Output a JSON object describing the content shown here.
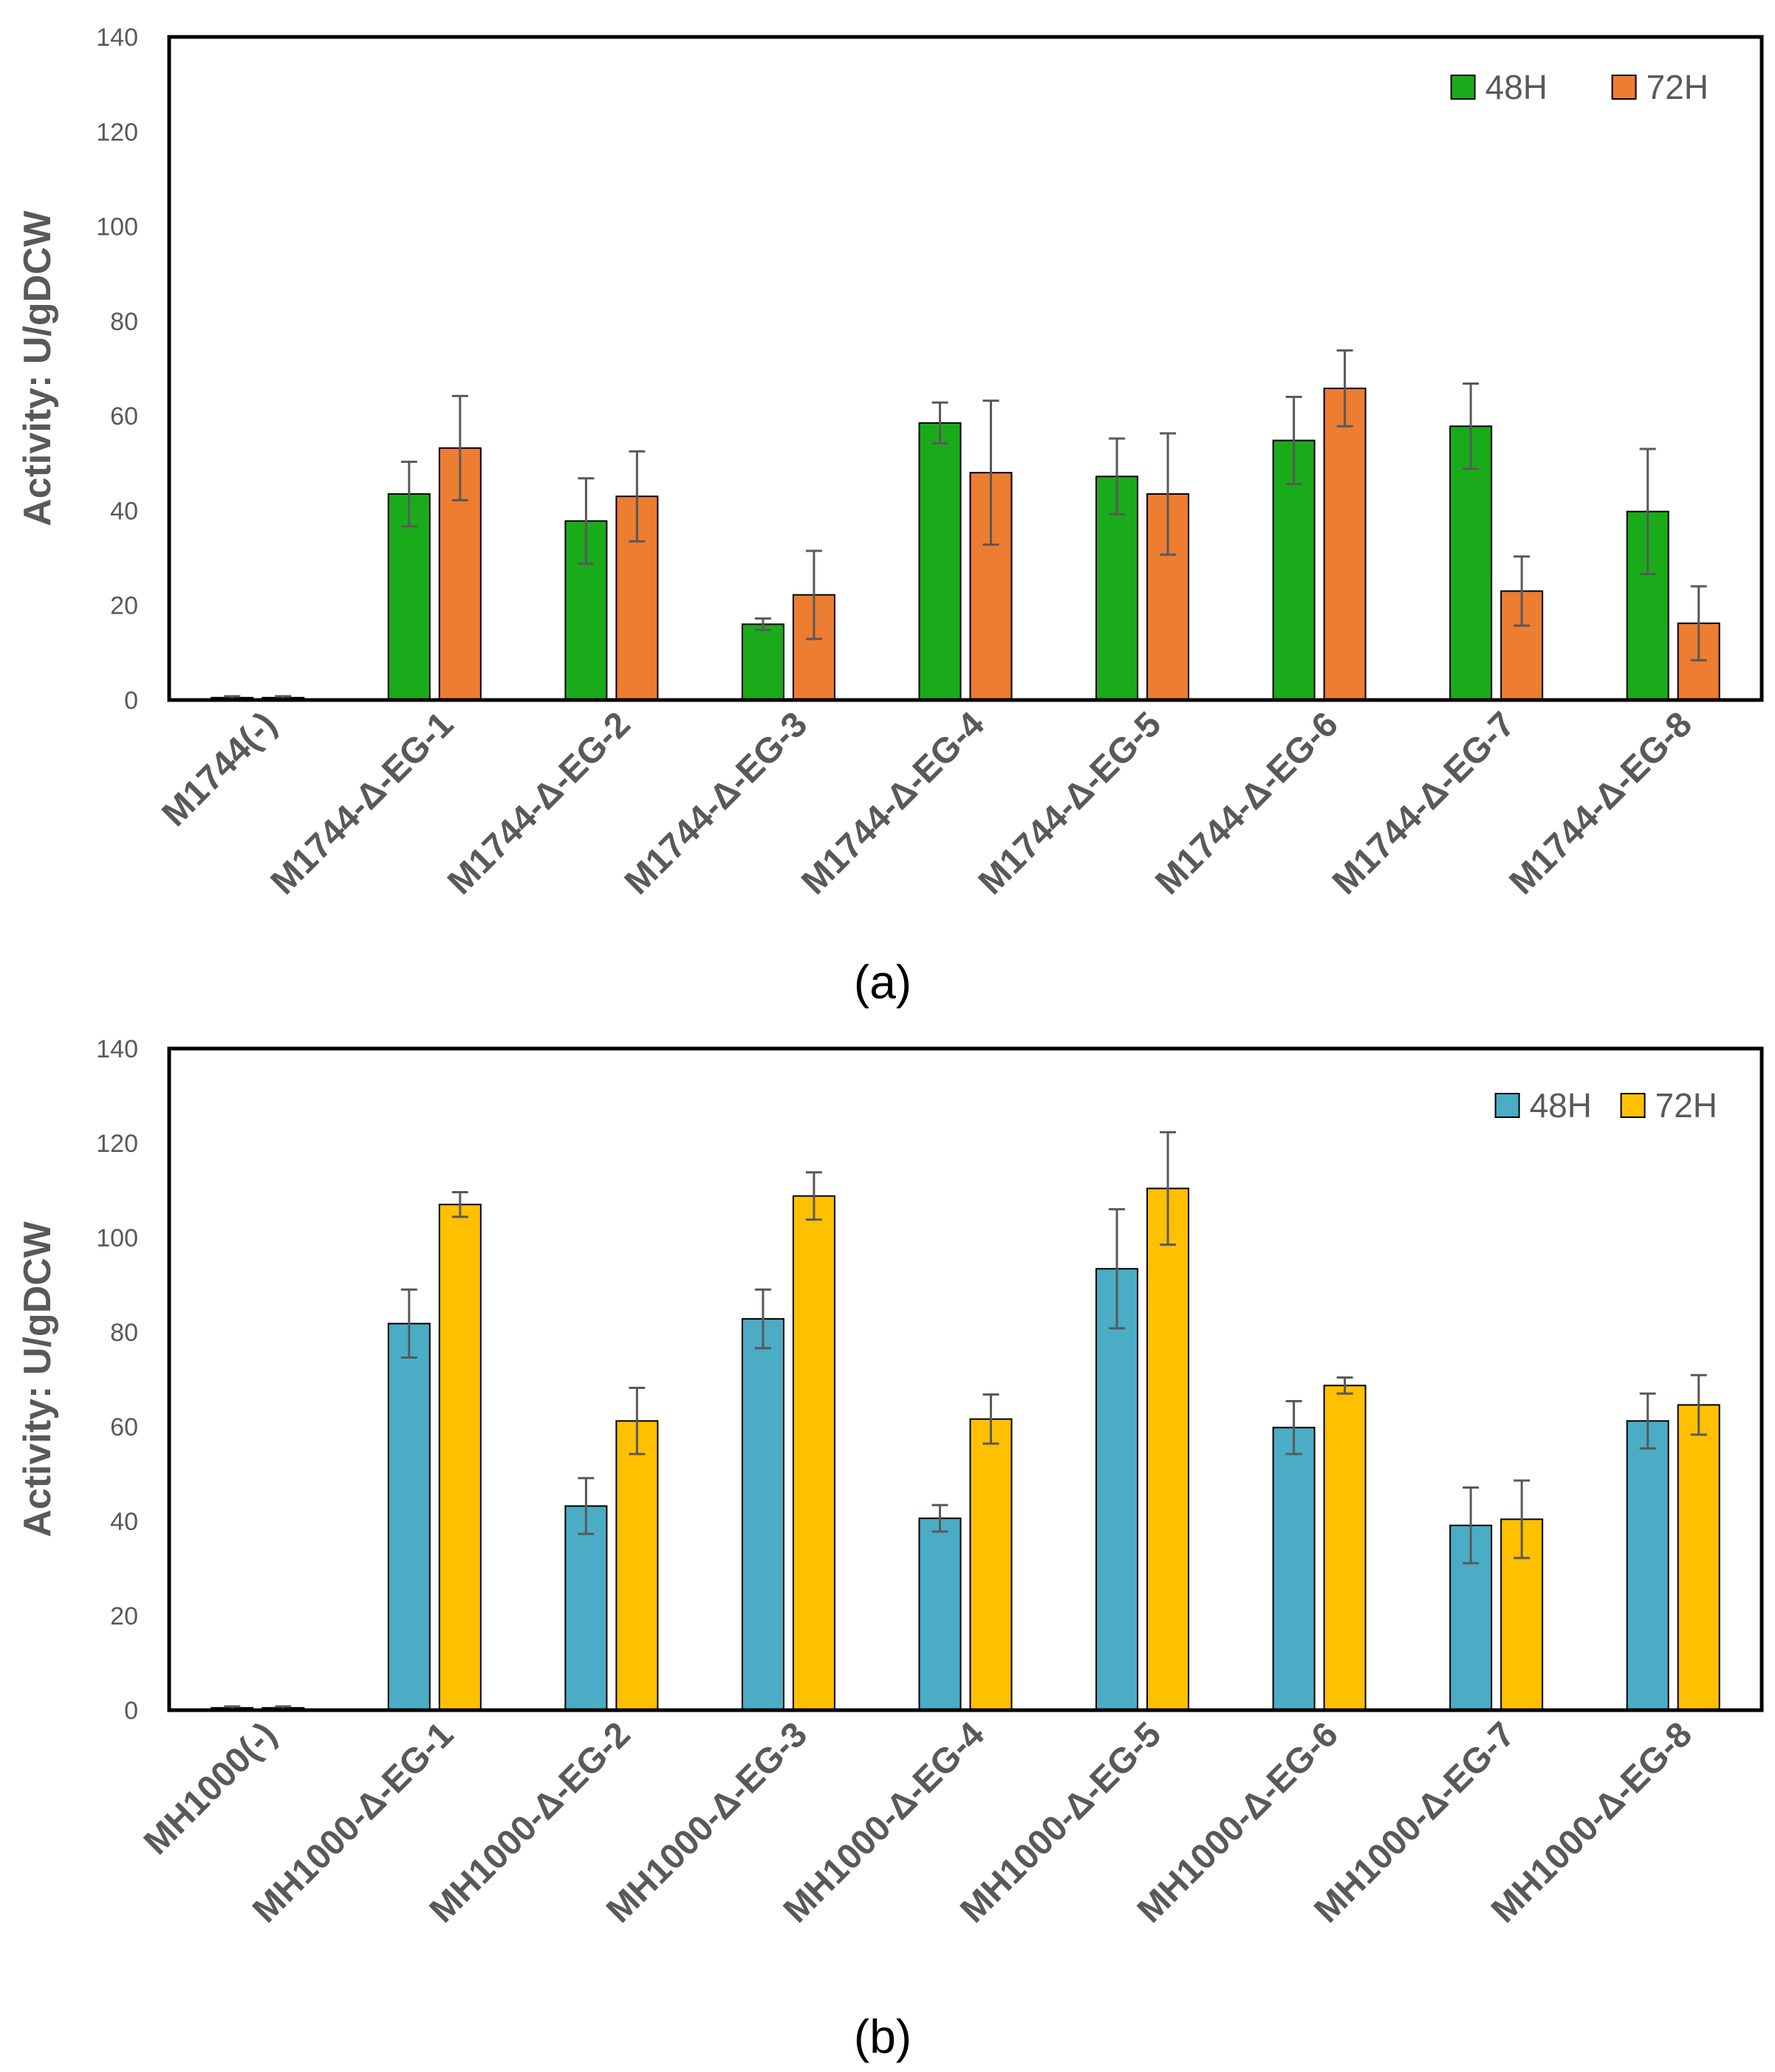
{
  "chart_data": [
    {
      "type": "bar",
      "panel_label": "(a)",
      "ylabel": "Activity: U/gDCW",
      "xlabel": "",
      "ylim": [
        0,
        140
      ],
      "yticks": [
        0,
        20,
        40,
        60,
        80,
        100,
        120,
        140
      ],
      "grid": false,
      "legend_position": "top-right",
      "categories": [
        "M1744(-)",
        "M1744-Δ-EG-1",
        "M1744-Δ-EG-2",
        "M1744-Δ-EG-3",
        "M1744-Δ-EG-4",
        "M1744-Δ-EG-5",
        "M1744-Δ-EG-6",
        "M1744-Δ-EG-7",
        "M1744-Δ-EG-8"
      ],
      "series": [
        {
          "name": "48H",
          "color": "#1aab1a",
          "values": [
            0.5,
            43.5,
            37.8,
            16.0,
            58.5,
            47.2,
            54.8,
            57.8,
            39.8
          ],
          "errors": [
            0.3,
            6.8,
            9.0,
            1.2,
            4.3,
            8.0,
            9.2,
            9.0,
            13.2
          ]
        },
        {
          "name": "72H",
          "color": "#ed7d31",
          "values": [
            0.5,
            53.2,
            43.0,
            22.2,
            48.0,
            43.5,
            65.8,
            23.0,
            16.2
          ],
          "errors": [
            0.3,
            11.0,
            9.5,
            9.3,
            15.2,
            12.8,
            8.0,
            7.3,
            7.8
          ]
        }
      ]
    },
    {
      "type": "bar",
      "panel_label": "(b)",
      "ylabel": "Activity: U/gDCW",
      "xlabel": "",
      "ylim": [
        0,
        140
      ],
      "yticks": [
        0,
        20,
        40,
        60,
        80,
        100,
        120,
        140
      ],
      "grid": false,
      "legend_position": "top-right",
      "categories": [
        "MH1000(-)",
        "MH1000-Δ-EG-1",
        "MH1000-Δ-EG-2",
        "MH1000-Δ-EG-3",
        "MH1000-Δ-EG-4",
        "MH1000-Δ-EG-5",
        "MH1000-Δ-EG-6",
        "MH1000-Δ-EG-7",
        "MH1000-Δ-EG-8"
      ],
      "series": [
        {
          "name": "48H",
          "color": "#4bacc6",
          "values": [
            0.5,
            81.8,
            43.2,
            82.8,
            40.6,
            93.4,
            59.8,
            39.1,
            61.2
          ],
          "errors": [
            0.3,
            7.2,
            5.9,
            6.2,
            2.8,
            12.6,
            5.6,
            8.0,
            5.8
          ]
        },
        {
          "name": "72H",
          "color": "#ffc000",
          "values": [
            0.5,
            107.0,
            61.2,
            108.8,
            61.6,
            110.4,
            68.7,
            40.4,
            64.6
          ],
          "errors": [
            0.3,
            2.6,
            7.0,
            5.0,
            5.2,
            11.9,
            1.7,
            8.2,
            6.3
          ]
        }
      ]
    }
  ]
}
